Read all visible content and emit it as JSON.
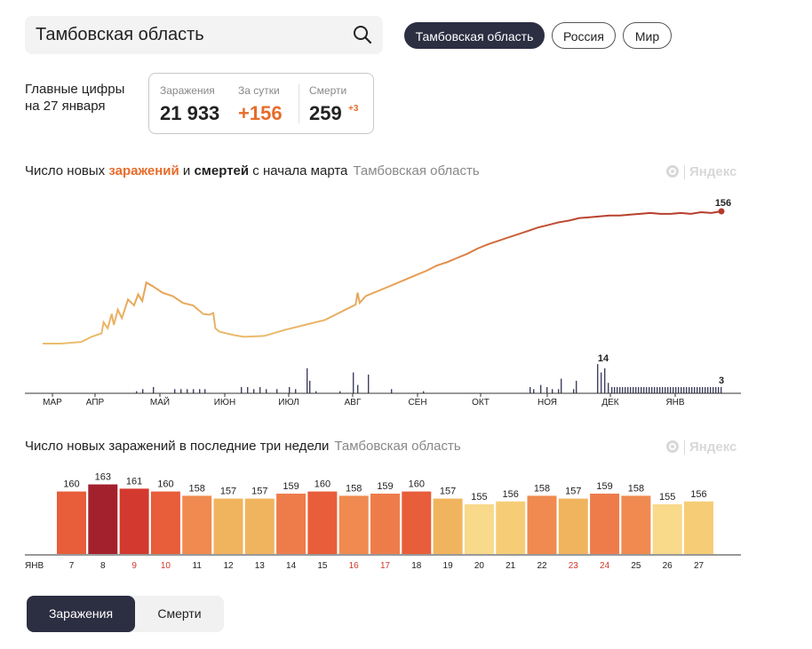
{
  "search": {
    "value": "Тамбовская область"
  },
  "region_tabs": [
    {
      "label": "Тамбовская область",
      "active": true
    },
    {
      "label": "Россия",
      "active": false
    },
    {
      "label": "Мир",
      "active": false
    }
  ],
  "summary": {
    "title_line1": "Главные цифры",
    "title_line2": "на 27 января",
    "infections_label": "Заражения",
    "infections_value": "21 933",
    "daily_label": "За сутки",
    "daily_value": "+156",
    "deaths_label": "Смерти",
    "deaths_value": "259",
    "deaths_delta": "+3"
  },
  "chart1": {
    "title_pre": "Число новых ",
    "title_infections": "заражений",
    "title_mid": " и ",
    "title_deaths": "смертей",
    "title_post": " с начала марта",
    "region": "Тамбовская область",
    "logo": "Яндекс"
  },
  "chart2": {
    "title": "Число новых заражений в последние три недели",
    "region": "Тамбовская область",
    "logo": "Яндекс"
  },
  "colors": {
    "accent": "#e76c2b",
    "dark": "#2c2e42",
    "line_low": "#e9b96a",
    "line_high": "#b33a2c",
    "death_bar": "#3f4160"
  },
  "chart_data": [
    {
      "type": "line",
      "title": "Число новых заражений и смертей с начала марта",
      "x_ticks": [
        "МАР",
        "АПР",
        "МАЙ",
        "ИЮН",
        "ИЮЛ",
        "АВГ",
        "СЕН",
        "ОКТ",
        "НОЯ",
        "ДЕК",
        "ЯНВ"
      ],
      "series": [
        {
          "name": "заражений",
          "x": [
            1,
            10,
            20,
            25,
            30,
            31,
            33,
            35,
            36,
            38,
            40,
            43,
            46,
            48,
            50,
            52,
            55,
            60,
            65,
            70,
            75,
            80,
            83,
            85,
            86,
            88,
            95,
            100,
            110,
            120,
            130,
            140,
            150,
            155,
            156,
            157,
            160,
            170,
            180,
            185,
            190,
            195,
            200,
            205,
            210,
            215,
            220,
            225,
            230,
            235,
            240,
            245,
            250,
            255,
            260,
            265,
            270,
            275,
            280,
            285,
            290,
            295,
            300,
            305,
            310,
            315,
            320,
            325,
            330,
            335
          ],
          "values": [
            0,
            0,
            2,
            8,
            12,
            25,
            18,
            35,
            22,
            40,
            30,
            52,
            45,
            58,
            50,
            72,
            68,
            60,
            56,
            48,
            45,
            35,
            34,
            36,
            18,
            14,
            10,
            8,
            9,
            16,
            22,
            28,
            40,
            46,
            60,
            48,
            56,
            66,
            76,
            81,
            86,
            92,
            96,
            101,
            106,
            112,
            117,
            121,
            125,
            129,
            133,
            137,
            140,
            143,
            145,
            148,
            149,
            150,
            151,
            151,
            152,
            153,
            154,
            153,
            153,
            154,
            153,
            155,
            154,
            156
          ]
        },
        {
          "name": "смертей",
          "values_note": "",
          "peak_label": "14",
          "last_label": "3"
        }
      ],
      "labels": {
        "last_infections": "156",
        "peak_deaths": "14",
        "last_deaths": "3"
      }
    },
    {
      "type": "bar",
      "title": "Число новых заражений в последние три недели",
      "month_label": "ЯНВ",
      "categories": [
        "7",
        "8",
        "9",
        "10",
        "11",
        "12",
        "13",
        "14",
        "15",
        "16",
        "17",
        "18",
        "19",
        "20",
        "21",
        "22",
        "23",
        "24",
        "25",
        "26",
        "27"
      ],
      "values": [
        160,
        163,
        161,
        160,
        158,
        157,
        157,
        159,
        160,
        158,
        159,
        160,
        157,
        155,
        156,
        158,
        157,
        159,
        158,
        155,
        156
      ],
      "weekend": [
        false,
        false,
        true,
        true,
        false,
        false,
        false,
        false,
        false,
        true,
        true,
        false,
        false,
        false,
        false,
        false,
        true,
        true,
        false,
        false,
        false
      ],
      "bar_colors": [
        "#e85d3a",
        "#a3212d",
        "#d3392e",
        "#e85d3a",
        "#f08a50",
        "#f1b45e",
        "#f1b45e",
        "#ee7c4b",
        "#e85d3a",
        "#f08a50",
        "#ee7c4b",
        "#e85d3a",
        "#f1b45e",
        "#f9d98a",
        "#f6cd76",
        "#f08a50",
        "#f1b45e",
        "#ee7c4b",
        "#f08a50",
        "#f9d98a",
        "#f6cd76"
      ],
      "bar_heights_pct": [
        88,
        98,
        92,
        88,
        82,
        78,
        78,
        85,
        88,
        82,
        85,
        88,
        78,
        70,
        74,
        82,
        78,
        85,
        82,
        70,
        74
      ]
    }
  ],
  "toggle": {
    "infections": "Заражения",
    "deaths": "Смерти"
  }
}
